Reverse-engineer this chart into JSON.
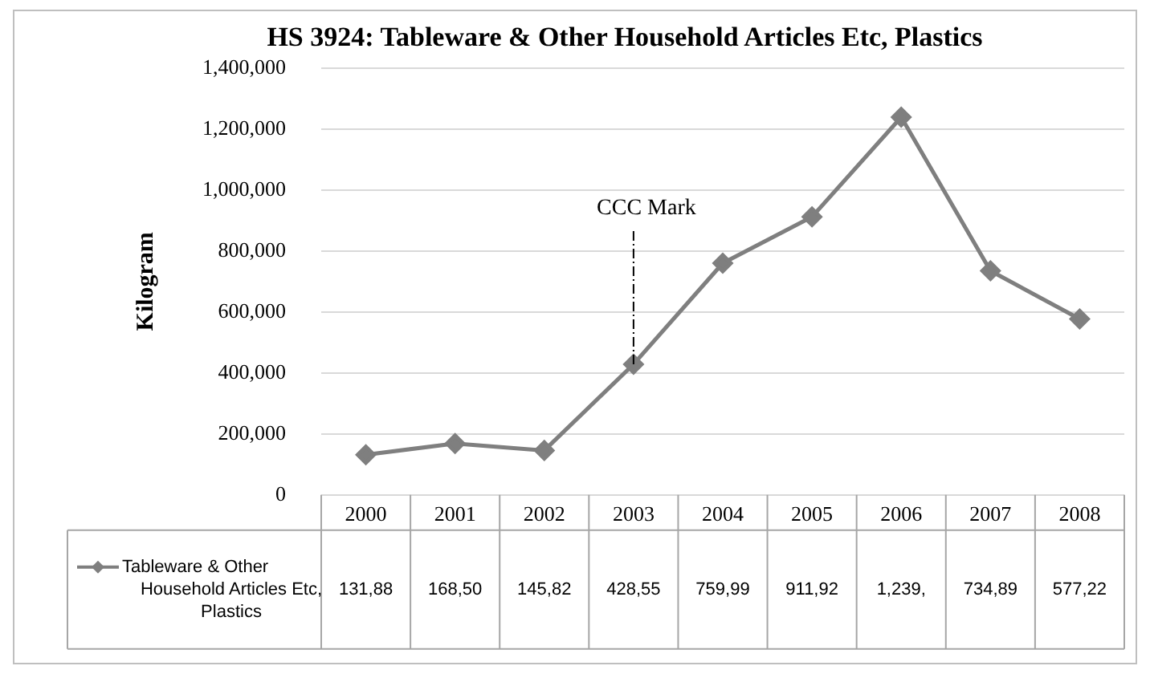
{
  "chart_data": {
    "type": "line",
    "title": "HS 3924: Tableware & Other Household Articles Etc, Plastics",
    "ylabel": "Kilogram",
    "categories": [
      "2000",
      "2001",
      "2002",
      "2003",
      "2004",
      "2005",
      "2006",
      "2007",
      "2008"
    ],
    "series": [
      {
        "name": "Tableware & Other Household Articles Etc, Plastics",
        "color": "#7f7f7f",
        "values": [
          131880,
          168500,
          145820,
          428550,
          759990,
          911920,
          1239000,
          734890,
          577220
        ]
      }
    ],
    "ylim": [
      0,
      1400000
    ],
    "yticks": [
      0,
      {
        "value": 200000,
        "label": "200,000"
      },
      {
        "value": 400000,
        "label": "400,000"
      },
      {
        "value": 600000,
        "label": "600,000"
      },
      {
        "value": 800000,
        "label": "800,000"
      },
      {
        "value": 1000000,
        "label": "1,000,000"
      },
      {
        "value": 1200000,
        "label": "1,200,000"
      },
      {
        "value": 1400000,
        "label": "1,400,000"
      }
    ],
    "grid": "y",
    "marker": "diamond",
    "line_style": "solid",
    "annotations": [
      {
        "text": "CCC Mark",
        "x": "2003",
        "y": 428550
      },
      "131,88",
      "168,50",
      "145,82",
      "428,55",
      "759,99",
      "911,92",
      "1,239,",
      "734,89",
      "577,22"
    ]
  }
}
